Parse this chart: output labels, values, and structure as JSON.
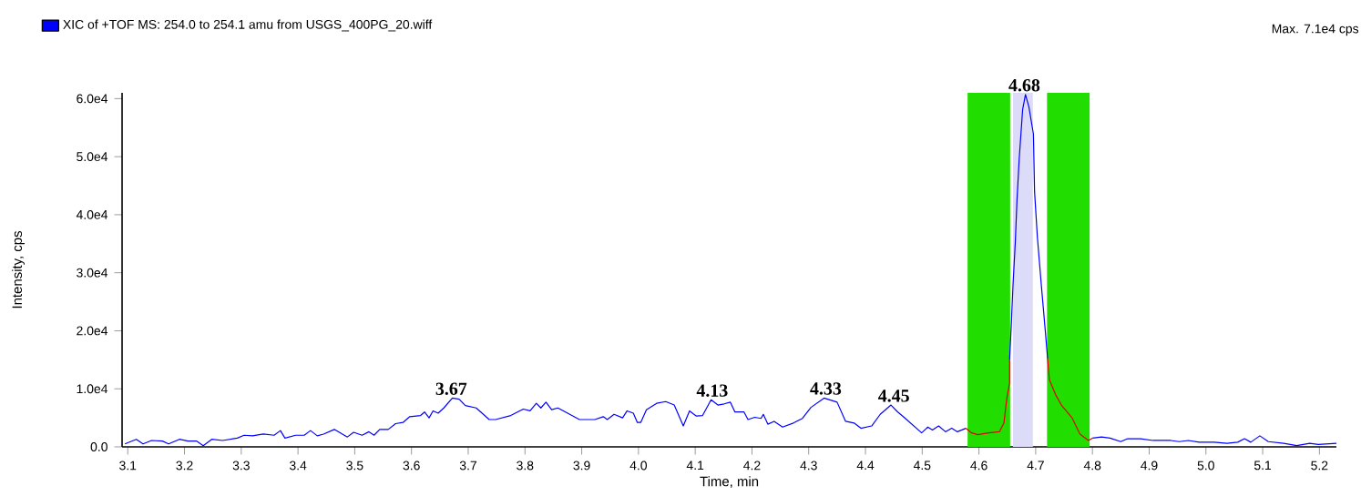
{
  "chart_data": {
    "type": "line",
    "xlabel": "Time, min",
    "ylabel": "Intensity, cps",
    "annotations": [
      "Max. 7.1e4 cps",
      {
        "text": "3.67",
        "x": 3.67,
        "y": 8400
      },
      {
        "text": "4.13",
        "x": 4.13,
        "y": 8100
      },
      {
        "text": "4.33",
        "x": 4.33,
        "y": 8440
      },
      {
        "text": "4.45",
        "x": 4.45,
        "y": 7200
      },
      {
        "text": "4.68",
        "x": 4.68,
        "y": 60700
      }
    ],
    "xlim": [
      3.09,
      5.23
    ],
    "ylim": [
      0,
      61000
    ],
    "xticks": [
      3.1,
      3.2,
      3.3,
      3.4,
      3.5,
      3.6,
      3.7,
      3.8,
      3.9,
      {
        "value": 4.0,
        "label": "4.0"
      },
      4.1,
      4.2,
      4.3,
      4.4,
      4.5,
      4.6,
      4.7,
      4.8,
      4.9,
      {
        "value": 5.0,
        "label": "5.0"
      },
      5.1,
      5.2
    ],
    "yticks": [
      {
        "value": 0,
        "label": "0.0"
      },
      {
        "value": 10000,
        "label": "1.0e4"
      },
      {
        "value": 20000,
        "label": "2.0e4"
      },
      {
        "value": 30000,
        "label": "3.0e4"
      },
      {
        "value": 40000,
        "label": "4.0e4"
      },
      {
        "value": 50000,
        "label": "5.0e4"
      },
      {
        "value": 60000,
        "label": "6.0e4"
      }
    ],
    "grid": false,
    "legend": "top left",
    "bands": [
      {
        "axis": "x",
        "from": 4.58,
        "to": 4.655,
        "color": "#22dd00"
      },
      {
        "axis": "x",
        "from": 4.66,
        "to": 4.695,
        "color": "#dcdcf8"
      },
      {
        "axis": "x",
        "from": 4.72,
        "to": 4.795,
        "color": "#22dd00"
      }
    ],
    "series": [
      {
        "name": "XIC of +TOF MS: 254.0 to 254.1 amu from USGS_400PG_20.wiff",
        "color": "#0000ff",
        "x": [
          3.095,
          3.115,
          3.127,
          3.142,
          3.161,
          3.172,
          3.191,
          3.206,
          3.221,
          3.233,
          3.248,
          3.267,
          3.293,
          3.305,
          3.32,
          3.339,
          3.358,
          3.369,
          3.377,
          3.396,
          3.411,
          3.422,
          3.434,
          3.445,
          3.464,
          3.487,
          3.498,
          3.513,
          3.525,
          3.534,
          3.544,
          3.559,
          3.572,
          3.585,
          3.597,
          3.616,
          3.623,
          3.631,
          3.638,
          3.647,
          3.657,
          3.672,
          3.684,
          3.695,
          3.714,
          3.737,
          3.748,
          3.775,
          3.797,
          3.809,
          3.82,
          3.828,
          3.837,
          3.847,
          3.858,
          3.896,
          3.923,
          3.938,
          3.945,
          3.957,
          3.972,
          3.98,
          3.991,
          3.998,
          4.004,
          4.014,
          4.032,
          4.048,
          4.063,
          4.079,
          4.09,
          4.102,
          4.113,
          4.128,
          4.14,
          4.151,
          4.162,
          4.17,
          4.186,
          4.193,
          4.205,
          4.216,
          4.22,
          4.228,
          4.239,
          4.254,
          4.273,
          4.289,
          4.304,
          4.327,
          4.35,
          4.365,
          4.38,
          4.392,
          4.411,
          4.426,
          4.445,
          4.457,
          4.468,
          4.499,
          4.51,
          4.518,
          4.529,
          4.541,
          4.552,
          4.562,
          4.577,
          4.6,
          4.654,
          4.657,
          4.66,
          4.664,
          4.667,
          4.671,
          4.677,
          4.682,
          4.688,
          4.696,
          4.698,
          4.703,
          4.71,
          4.717,
          4.721,
          4.76,
          4.8,
          4.816,
          4.831,
          4.85,
          4.862,
          4.885,
          4.907,
          4.938,
          4.953,
          4.969,
          4.988,
          5.014,
          5.037,
          5.056,
          5.068,
          5.079,
          5.095,
          5.11,
          5.137,
          5.16,
          5.183,
          5.198,
          5.23
        ],
        "values": [
          500,
          1300,
          500,
          1100,
          1000,
          500,
          1300,
          1000,
          1000,
          200,
          1300,
          1100,
          1500,
          2000,
          1900,
          2200,
          2000,
          2800,
          1500,
          2000,
          2000,
          2800,
          1900,
          2200,
          3000,
          1700,
          2500,
          2000,
          2600,
          2000,
          3000,
          3000,
          4000,
          4200,
          5200,
          5400,
          6000,
          5000,
          6200,
          5800,
          6700,
          8400,
          8200,
          7100,
          6700,
          4700,
          4700,
          5400,
          6500,
          6200,
          7500,
          6700,
          7700,
          6400,
          6700,
          4700,
          4700,
          5200,
          4700,
          5600,
          5000,
          6200,
          5800,
          4200,
          4200,
          6400,
          7500,
          7800,
          7200,
          3600,
          6200,
          5300,
          5400,
          8100,
          7200,
          7400,
          7700,
          6000,
          6000,
          4700,
          5100,
          4900,
          5600,
          3900,
          4400,
          3400,
          4100,
          4900,
          6800,
          8400,
          7700,
          4400,
          4100,
          3200,
          3600,
          5600,
          7200,
          6000,
          5100,
          2400,
          3400,
          2900,
          3600,
          2600,
          3200,
          2600,
          3200,
          null,
          15000,
          21000,
          27800,
          35100,
          42400,
          49700,
          58100,
          60700,
          58600,
          53900,
          44000,
          36100,
          27800,
          19900,
          15200,
          null,
          1500,
          1700,
          1500,
          900,
          1400,
          1400,
          1100,
          1100,
          900,
          1100,
          800,
          800,
          600,
          800,
          1400,
          800,
          1900,
          900,
          600,
          200,
          600,
          400,
          600
        ]
      },
      {
        "color": "#e00000",
        "x": [
          4.577,
          4.587,
          4.598,
          4.617,
          4.636,
          4.644,
          4.649,
          4.654,
          4.654,
          null,
          4.721,
          4.724,
          4.735,
          4.746,
          4.764,
          4.778,
          4.793,
          4.8
        ],
        "values": [
          3200,
          2400,
          2100,
          2400,
          2600,
          4100,
          8300,
          11000,
          15000,
          null,
          15200,
          11600,
          9000,
          7100,
          5000,
          2200,
          1100,
          1500
        ]
      }
    ]
  }
}
